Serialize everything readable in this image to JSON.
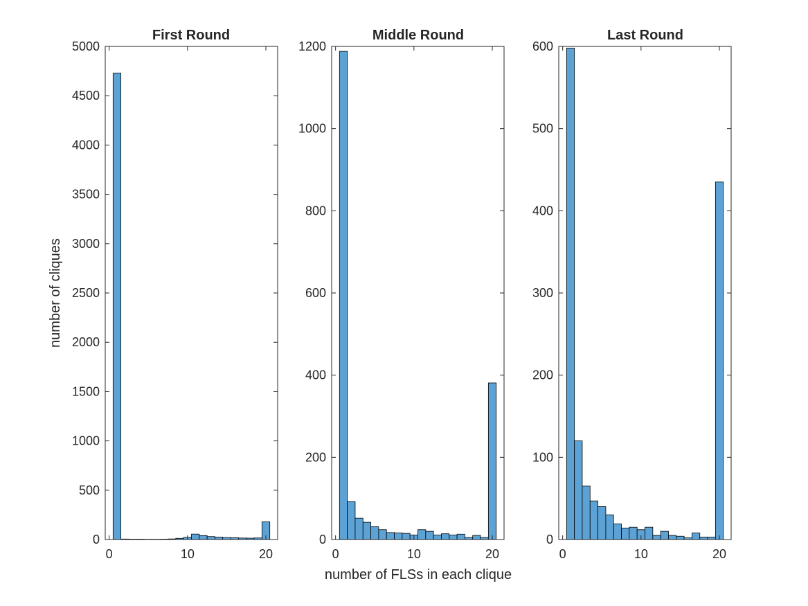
{
  "figure": {
    "shared_xlabel": "number of FLSs in each clique",
    "shared_ylabel": "number of cliques"
  },
  "colors": {
    "bar_fill": "#5DA2D5",
    "bar_edge": "#000000",
    "axis": "#262626",
    "background": "#ffffff"
  },
  "chart_data": [
    {
      "type": "bar",
      "title": "First Round",
      "xlabel": "",
      "ylabel": "number of cliques",
      "xlim": [
        -0.5,
        21.5
      ],
      "ylim": [
        0,
        5000
      ],
      "xticks": [
        0,
        10,
        20
      ],
      "yticks": [
        0,
        500,
        1000,
        1500,
        2000,
        2500,
        3000,
        3500,
        4000,
        4500,
        5000
      ],
      "bin_width": 1,
      "x": [
        1,
        2,
        3,
        4,
        5,
        6,
        7,
        8,
        9,
        10,
        11,
        12,
        13,
        14,
        15,
        16,
        17,
        18,
        19,
        20
      ],
      "values": [
        4730,
        5,
        4,
        4,
        3,
        3,
        4,
        6,
        12,
        22,
        55,
        40,
        30,
        25,
        20,
        18,
        15,
        14,
        16,
        180
      ],
      "grid": false
    },
    {
      "type": "bar",
      "title": "Middle Round",
      "xlabel": "number of FLSs in each clique",
      "ylabel": "",
      "xlim": [
        -0.5,
        21.5
      ],
      "ylim": [
        0,
        1200
      ],
      "xticks": [
        0,
        10,
        20
      ],
      "yticks": [
        0,
        200,
        400,
        600,
        800,
        1000,
        1200
      ],
      "bin_width": 1,
      "x": [
        1,
        2,
        3,
        4,
        5,
        6,
        7,
        8,
        9,
        10,
        11,
        12,
        13,
        14,
        15,
        16,
        17,
        18,
        19,
        20
      ],
      "values": [
        1188,
        92,
        52,
        42,
        31,
        24,
        17,
        16,
        15,
        11,
        24,
        20,
        11,
        14,
        11,
        13,
        5,
        10,
        5,
        381
      ],
      "grid": false
    },
    {
      "type": "bar",
      "title": "Last Round",
      "xlabel": "",
      "ylabel": "",
      "xlim": [
        -0.5,
        21.5
      ],
      "ylim": [
        0,
        600
      ],
      "xticks": [
        0,
        10,
        20
      ],
      "yticks": [
        0,
        100,
        200,
        300,
        400,
        500,
        600
      ],
      "bin_width": 1,
      "x": [
        1,
        2,
        3,
        4,
        5,
        6,
        7,
        8,
        9,
        10,
        11,
        12,
        13,
        14,
        15,
        16,
        17,
        18,
        19,
        20
      ],
      "values": [
        598,
        120,
        65,
        47,
        40,
        30,
        19,
        14,
        15,
        12,
        15,
        5,
        10,
        5,
        4,
        2,
        8,
        3,
        3,
        435
      ],
      "grid": false
    }
  ]
}
